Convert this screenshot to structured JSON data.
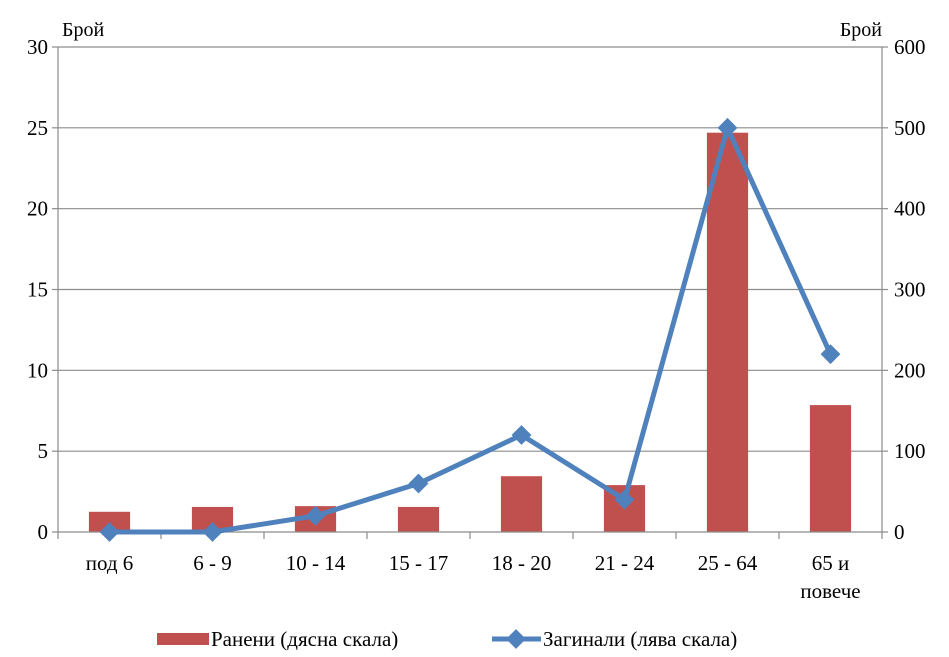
{
  "chart_data": {
    "type": "bar",
    "categories": [
      [
        "под 6"
      ],
      [
        "6 - 9"
      ],
      [
        "10 - 14"
      ],
      [
        "15 - 17"
      ],
      [
        "18 - 20"
      ],
      [
        "21 - 24"
      ],
      [
        "25 - 64"
      ],
      [
        "65 и",
        "повече"
      ]
    ],
    "left_axis": {
      "label": "Брой",
      "ylim": [
        0,
        30
      ],
      "ticks": [
        "0",
        "5",
        "10",
        "15",
        "20",
        "25",
        "30"
      ]
    },
    "right_axis": {
      "label": "Брой",
      "ylim": [
        0,
        600
      ],
      "ticks": [
        "0",
        "100",
        "200",
        "300",
        "400",
        "500",
        "600"
      ]
    },
    "series": [
      {
        "name": "Ранени (дясна скала)",
        "type": "bar",
        "axis": "right",
        "color": "#C0504D",
        "values": [
          25,
          31,
          32,
          31,
          69,
          58,
          494,
          157
        ]
      },
      {
        "name": "Загинали (лява скала)",
        "type": "line",
        "axis": "left",
        "color": "#4F81BD",
        "values": [
          0,
          0,
          1,
          3,
          6,
          2,
          25,
          11
        ]
      }
    ],
    "grid": true,
    "legend": "bottom"
  }
}
